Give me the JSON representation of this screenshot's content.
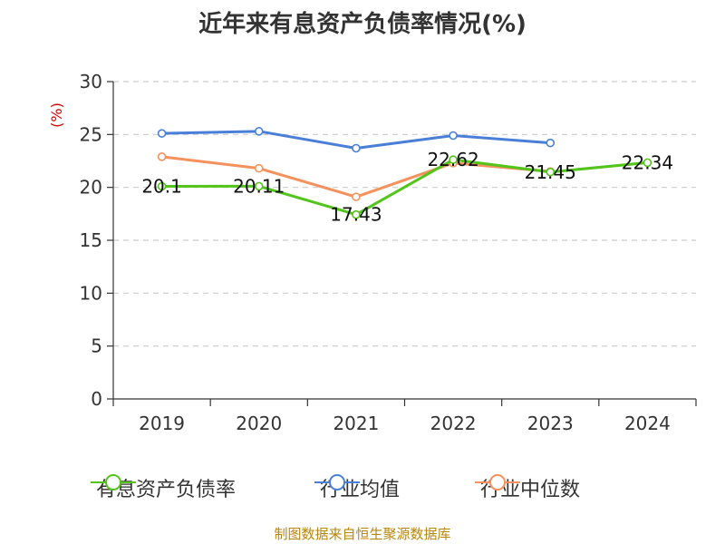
{
  "colors": {
    "series": [
      "#52c41a",
      "#4a7fd8",
      "#f4915c"
    ],
    "axis": "#333333",
    "grid": "#cccccc",
    "source": "#b8860b",
    "unit": "#cc0000"
  },
  "chart_data": {
    "type": "line",
    "title": "近年来有息资产负债率情况(%)",
    "ylabel": "(%)",
    "categories": [
      "2019",
      "2020",
      "2021",
      "2022",
      "2023",
      "2024"
    ],
    "ylim": [
      0,
      30
    ],
    "yticks": [
      "0",
      "5",
      "10",
      "15",
      "20",
      "25",
      "30"
    ],
    "grid": "horizontal-dashed",
    "legend_position": "bottom",
    "series": [
      {
        "name": "有息资产负债率",
        "values": [
          20.1,
          20.11,
          17.43,
          22.62,
          21.45,
          22.34
        ],
        "labels": [
          "20.1",
          "20.11",
          "17.43",
          "22.62",
          "21.45",
          "22.34"
        ]
      },
      {
        "name": "行业均值",
        "values": [
          25.1,
          25.3,
          23.7,
          24.9,
          24.2,
          null
        ]
      },
      {
        "name": "行业中位数",
        "values": [
          22.9,
          21.8,
          19.1,
          22.3,
          21.5,
          null
        ]
      }
    ]
  },
  "source": "制图数据来自恒生聚源数据库"
}
